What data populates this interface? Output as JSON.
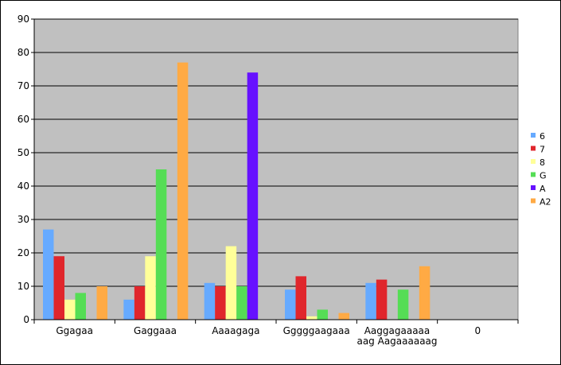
{
  "chart_data": {
    "type": "bar",
    "title": "",
    "xlabel": "",
    "ylabel": "",
    "ylim": [
      0,
      90
    ],
    "yticks": [
      0,
      10,
      20,
      30,
      40,
      50,
      60,
      70,
      80,
      90
    ],
    "grid": true,
    "legend_position": "right",
    "plot_background": "#c0c0c0",
    "categories": [
      [
        "Ggagaa"
      ],
      [
        "Gaggaaa"
      ],
      [
        "Aaaagaga"
      ],
      [
        "Gggggaagaaa"
      ],
      [
        "Aaggagaaaaa",
        "aag Aagaaaaaag"
      ],
      [
        "0"
      ]
    ],
    "series": [
      {
        "name": "6",
        "color": "#66aaff",
        "values": [
          27,
          6,
          11,
          9,
          11,
          0
        ]
      },
      {
        "name": "7",
        "color": "#e0262c",
        "values": [
          19,
          10,
          10,
          13,
          12,
          0
        ]
      },
      {
        "name": "8",
        "color": "#ffff99",
        "values": [
          6,
          19,
          22,
          1,
          0,
          0
        ]
      },
      {
        "name": "G",
        "color": "#55dd55",
        "values": [
          8,
          45,
          10,
          3,
          9,
          0
        ]
      },
      {
        "name": "A",
        "color": "#6611ff",
        "values": [
          0,
          0,
          74,
          0,
          0,
          0
        ]
      },
      {
        "name": "A2",
        "color": "#ffaa44",
        "values": [
          10,
          77,
          0,
          2,
          16,
          0
        ]
      }
    ]
  }
}
